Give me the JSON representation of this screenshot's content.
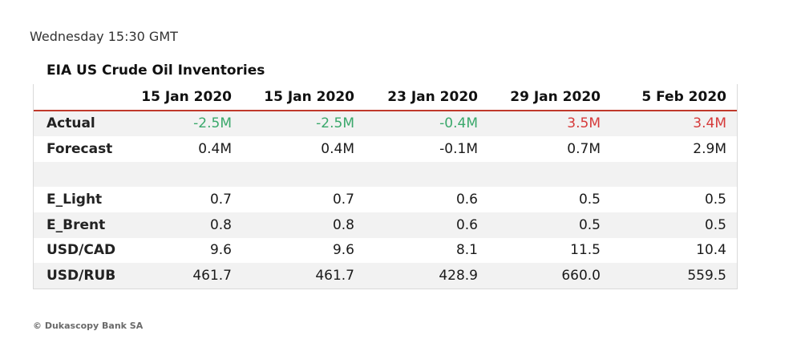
{
  "timestamp": "Wednesday 15:30 GMT",
  "footer": "© Dukascopy Bank SA",
  "colors": {
    "negative": "#3aa86b",
    "positive": "#d63a3a",
    "header_rule": "#c0392b",
    "row_shade": "#f2f2f2"
  },
  "chart_data": {
    "type": "table",
    "title": "EIA US Crude Oil Inventories",
    "columns": [
      "",
      "15 Jan 2020",
      "15 Jan 2020",
      "23 Jan 2020",
      "29 Jan 2020",
      "5 Feb 2020"
    ],
    "rows": [
      {
        "label": "Actual",
        "cells": [
          "-2.5M",
          "-2.5M",
          "-0.4M",
          "3.5M",
          "3.4M"
        ],
        "colored": true
      },
      {
        "label": "Forecast",
        "cells": [
          "0.4M",
          "0.4M",
          "-0.1M",
          "0.7M",
          "2.9M"
        ]
      },
      {
        "label": "",
        "cells": [
          "",
          "",
          "",
          "",
          ""
        ]
      },
      {
        "label": "E_Light",
        "cells": [
          "0.7",
          "0.7",
          "0.6",
          "0.5",
          "0.5"
        ]
      },
      {
        "label": "E_Brent",
        "cells": [
          "0.8",
          "0.8",
          "0.6",
          "0.5",
          "0.5"
        ]
      },
      {
        "label": "USD/CAD",
        "cells": [
          "9.6",
          "9.6",
          "8.1",
          "11.5",
          "10.4"
        ]
      },
      {
        "label": "USD/RUB",
        "cells": [
          "461.7",
          "461.7",
          "428.9",
          "660.0",
          "559.5"
        ]
      }
    ]
  }
}
